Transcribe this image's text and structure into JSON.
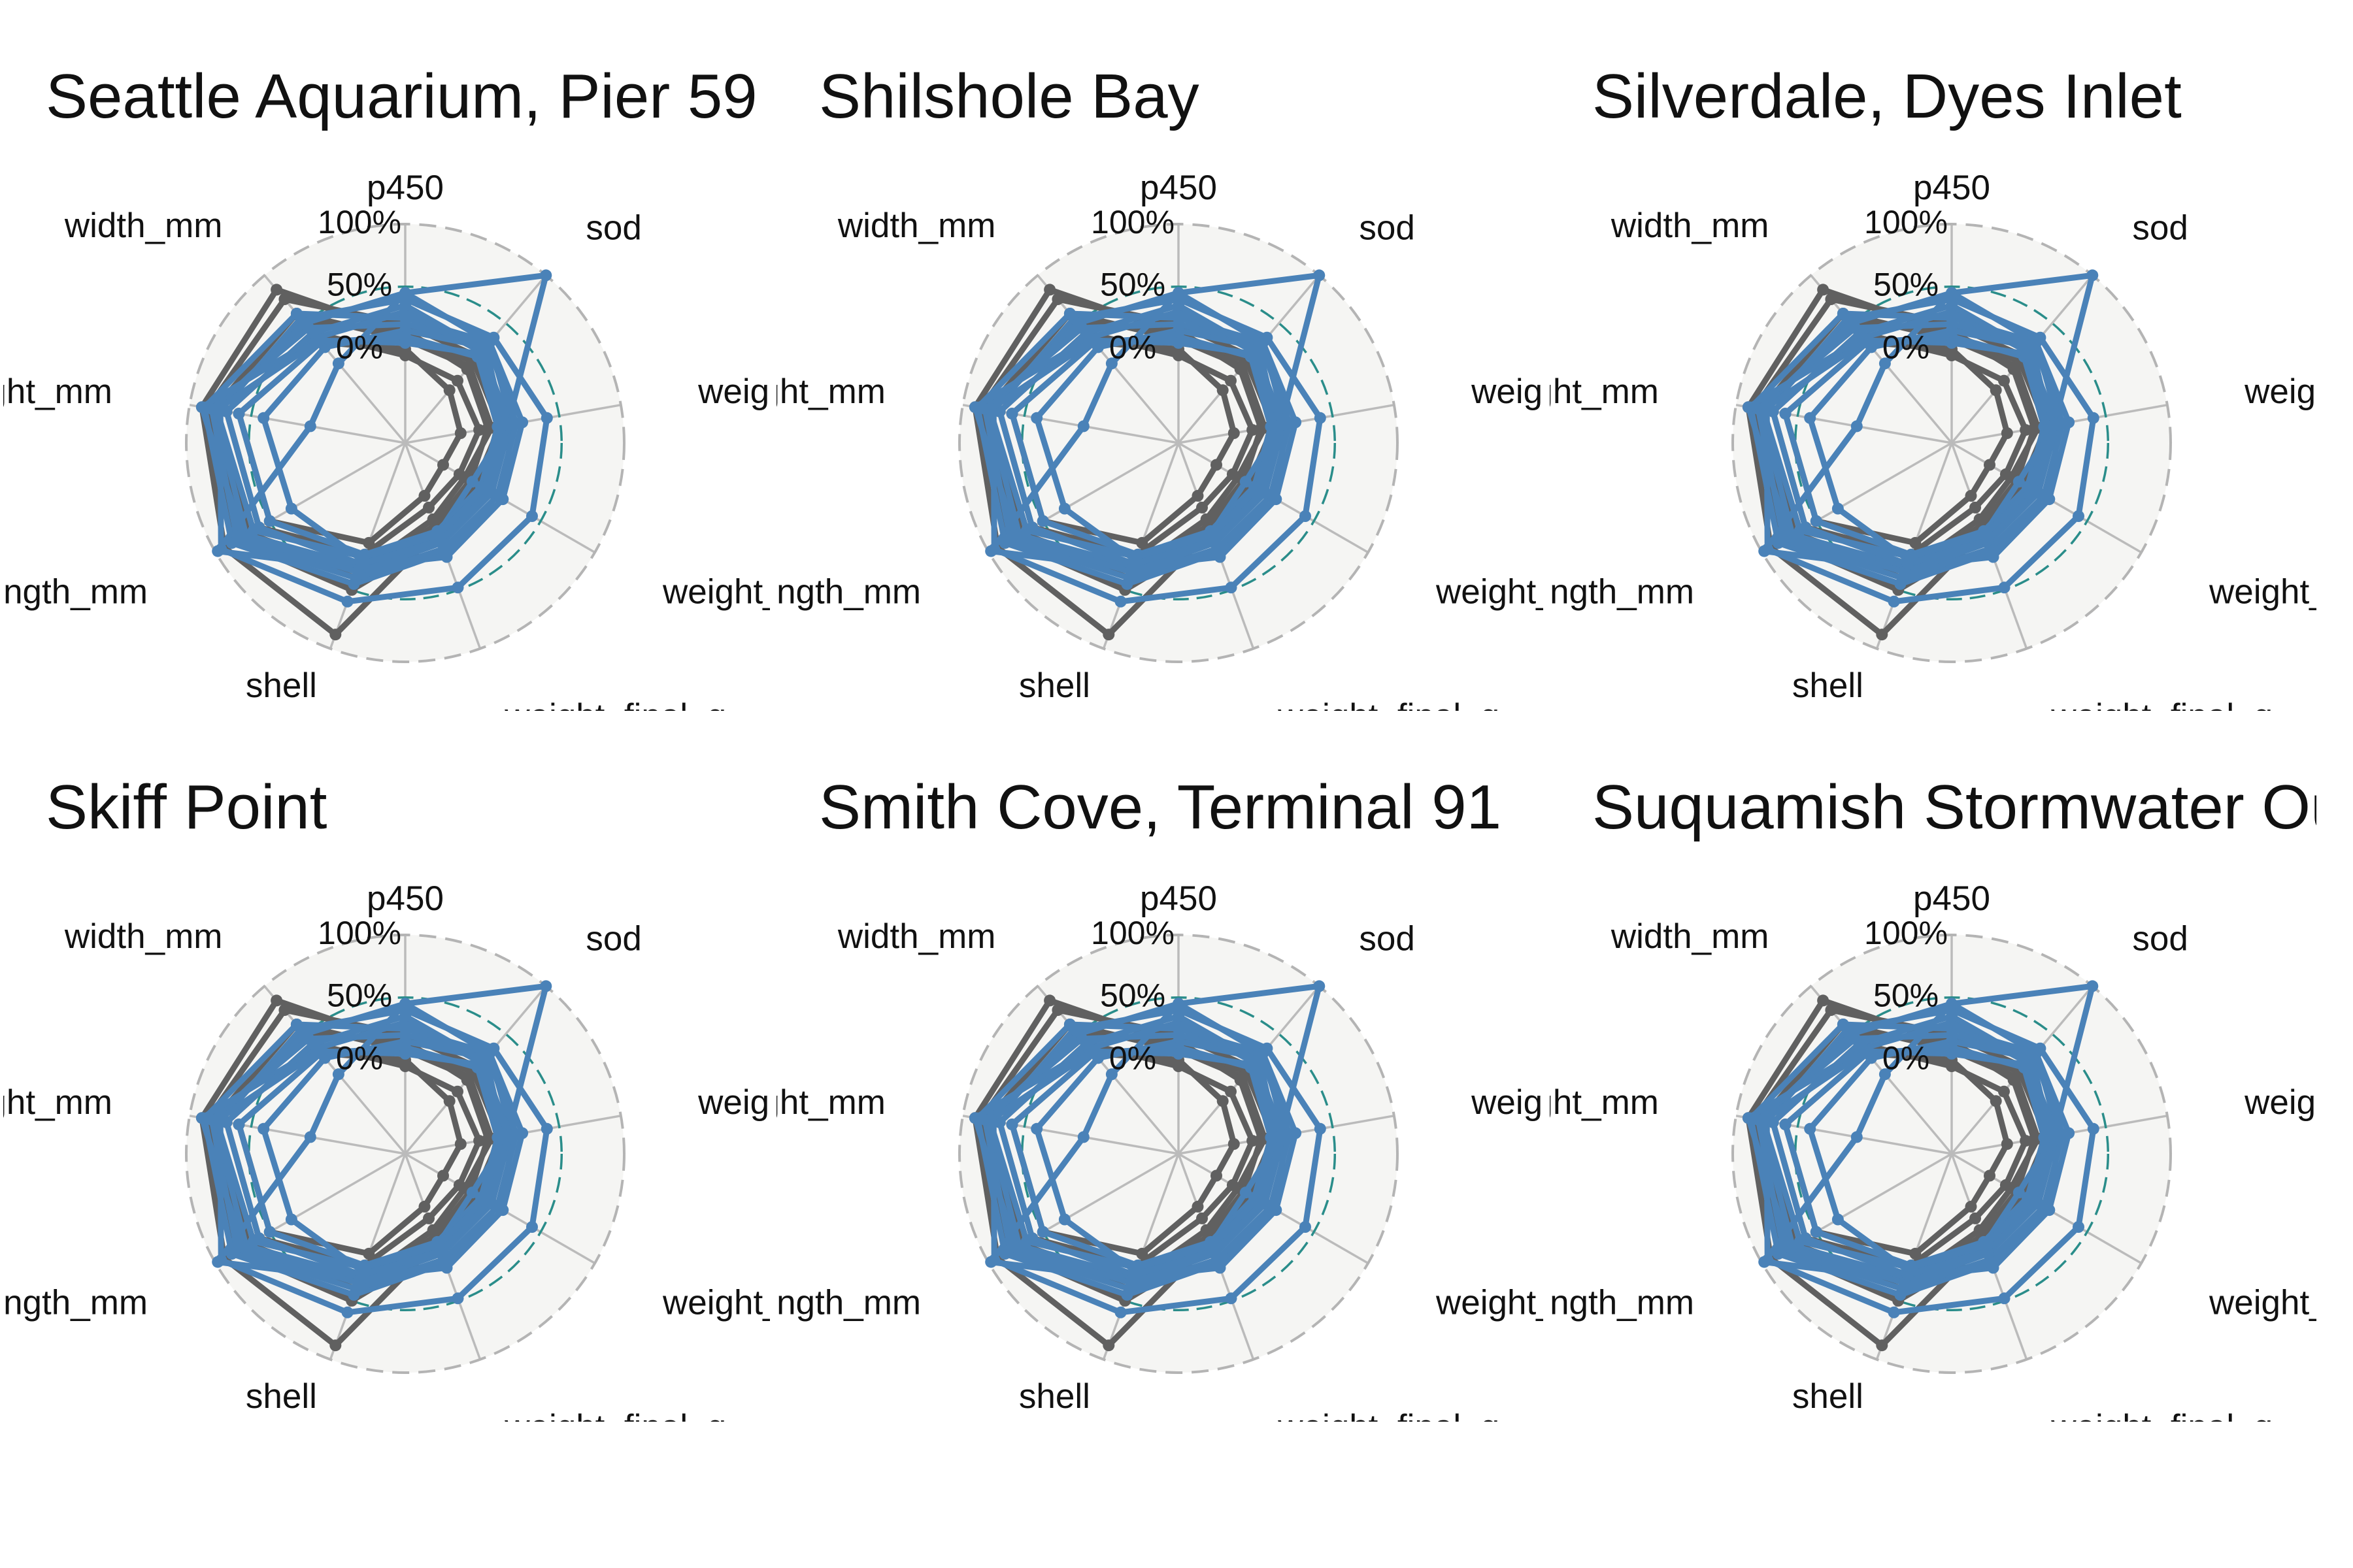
{
  "chart_data": {
    "type": "radar",
    "axes": [
      "p450",
      "sod",
      "weight_initial_g",
      "weight_change_g",
      "weight_final_g",
      "shell",
      "length_mm",
      "height_mm",
      "width_mm"
    ],
    "radial_labels": [
      "0%",
      "50%",
      "100%"
    ],
    "radial_range": [
      -0.75,
      1.0
    ],
    "reference_circle": 0.5,
    "panels": [
      {
        "title": "Seattle Aquarium, Pier 59"
      },
      {
        "title": "Shilshole Bay"
      },
      {
        "title": "Silverdale, Dyes Inlet"
      },
      {
        "title": "Skiff Point"
      },
      {
        "title": "Smith Cove, Terminal 91"
      },
      {
        "title": "Suquamish Stormwater Outfall"
      }
    ],
    "series": [
      {
        "group": "highlight",
        "values": [
          0.45,
          1.0,
          0.08,
          -0.13,
          0.02,
          0.32,
          0.98,
          0.02,
          0.08
        ]
      },
      {
        "group": "highlight",
        "values": [
          0.4,
          0.35,
          0.4,
          0.42,
          0.48,
          0.6,
          0.95,
          0.75,
          0.55
        ]
      },
      {
        "group": "highlight",
        "values": [
          0.45,
          0.3,
          0.2,
          0.15,
          0.22,
          0.3,
          0.72,
          0.8,
          0.5
        ]
      },
      {
        "group": "highlight",
        "values": [
          0.25,
          0.3,
          0.12,
          0.15,
          0.18,
          0.45,
          0.85,
          0.88,
          0.6
        ]
      },
      {
        "group": "highlight",
        "values": [
          0.2,
          0.28,
          0.15,
          0.1,
          0.15,
          0.4,
          0.8,
          0.82,
          0.45
        ]
      },
      {
        "group": "highlight",
        "values": [
          0.3,
          0.2,
          0.1,
          0.05,
          0.1,
          0.35,
          0.75,
          0.9,
          0.35
        ]
      },
      {
        "group": "highlight",
        "values": [
          0.15,
          0.25,
          0.05,
          0.0,
          0.05,
          0.25,
          0.3,
          0.4,
          0.25
        ]
      },
      {
        "group": "highlight",
        "values": [
          0.1,
          0.15,
          0.0,
          -0.05,
          0.0,
          0.2,
          0.5,
          0.6,
          0.3
        ]
      },
      {
        "group": "highlight",
        "values": [
          0.35,
          0.22,
          0.08,
          0.02,
          0.08,
          0.28,
          0.6,
          0.7,
          0.4
        ]
      },
      {
        "group": "highlight",
        "values": [
          0.05,
          0.18,
          0.03,
          -0.02,
          0.03,
          0.22,
          0.65,
          0.78,
          0.32
        ]
      },
      {
        "group": "other",
        "values": [
          0.12,
          0.1,
          0.02,
          -0.1,
          0.0,
          0.88,
          0.92,
          0.9,
          0.85
        ]
      },
      {
        "group": "other",
        "values": [
          0.08,
          0.05,
          -0.05,
          -0.2,
          -0.1,
          0.35,
          0.7,
          0.8,
          0.6
        ]
      },
      {
        "group": "other",
        "values": [
          -0.05,
          -0.1,
          -0.15,
          -0.25,
          -0.2,
          0.2,
          0.6,
          0.7,
          0.4
        ]
      },
      {
        "group": "other",
        "values": [
          0.2,
          0.15,
          0.0,
          -0.05,
          0.05,
          0.5,
          0.8,
          0.85,
          0.75
        ]
      },
      {
        "group": "other",
        "values": [
          0.0,
          -0.2,
          -0.3,
          -0.4,
          -0.3,
          0.1,
          0.5,
          0.6,
          0.3
        ]
      },
      {
        "group": "other",
        "values": [
          0.15,
          0.02,
          -0.08,
          -0.15,
          -0.05,
          0.4,
          0.75,
          0.78,
          0.5
        ]
      }
    ],
    "colors": {
      "highlight": "#4a82b8",
      "other": "#606060",
      "panel_background": "#f5f5f3",
      "grid": "#bbbbbb",
      "outer_ring": "#b4b4b4",
      "reference_circle": "#2a8d8a"
    }
  }
}
